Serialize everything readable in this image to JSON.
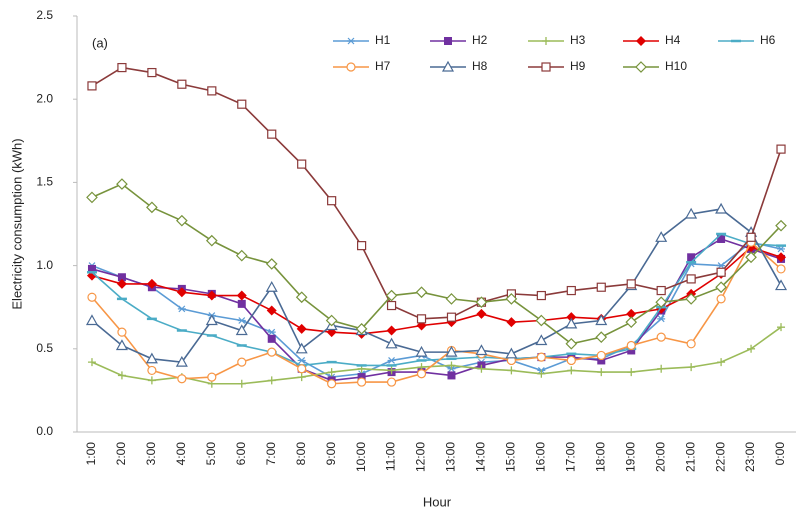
{
  "chart_data": {
    "type": "line",
    "annotation": "(a)",
    "xlabel": "Hour",
    "ylabel": "Electricity consumption (kWh)",
    "categories": [
      "1:00",
      "2:00",
      "3:00",
      "4:00",
      "5:00",
      "6:00",
      "7:00",
      "8:00",
      "9:00",
      "10:00",
      "11:00",
      "12:00",
      "13:00",
      "14:00",
      "15:00",
      "16:00",
      "17:00",
      "18:00",
      "19:00",
      "20:00",
      "21:00",
      "22:00",
      "23:00",
      "0:00"
    ],
    "ylim": [
      0,
      2.5
    ],
    "yticks": [
      {
        "value": 0,
        "label": "0.0"
      },
      0.5,
      {
        "value": 1,
        "label": "1.0"
      },
      1.5,
      {
        "value": 2,
        "label": "2.0"
      },
      2.5
    ],
    "grid": false,
    "series": [
      {
        "name": "H1",
        "color": "#5b9bd5",
        "marker": "asterisk",
        "values": [
          1.0,
          0.93,
          0.87,
          0.74,
          0.7,
          0.67,
          0.6,
          0.43,
          0.33,
          0.35,
          0.43,
          0.46,
          0.38,
          0.42,
          0.43,
          0.37,
          0.44,
          0.44,
          0.52,
          0.68,
          1.01,
          1.0,
          1.14,
          1.1
        ]
      },
      {
        "name": "H2",
        "color": "#7030a0",
        "marker": "square",
        "values": [
          0.98,
          0.93,
          0.87,
          0.86,
          0.83,
          0.77,
          0.56,
          0.38,
          0.31,
          0.33,
          0.36,
          0.36,
          0.34,
          0.4,
          0.44,
          0.45,
          0.45,
          0.43,
          0.49,
          0.73,
          1.05,
          1.16,
          1.1,
          1.04
        ]
      },
      {
        "name": "H3",
        "color": "#9bbb59",
        "marker": "plus",
        "values": [
          0.42,
          0.34,
          0.31,
          0.33,
          0.29,
          0.29,
          0.31,
          0.33,
          0.36,
          0.38,
          0.37,
          0.39,
          0.4,
          0.38,
          0.37,
          0.35,
          0.37,
          0.36,
          0.36,
          0.38,
          0.39,
          0.42,
          0.5,
          0.63
        ]
      },
      {
        "name": "H4",
        "color": "#e00000",
        "marker": "diamond",
        "values": [
          0.94,
          0.89,
          0.89,
          0.84,
          0.82,
          0.82,
          0.73,
          0.62,
          0.6,
          0.59,
          0.61,
          0.64,
          0.66,
          0.71,
          0.66,
          0.67,
          0.69,
          0.68,
          0.71,
          0.74,
          0.83,
          0.95,
          1.11,
          1.05
        ]
      },
      {
        "name": "H6",
        "color": "#4bacc6",
        "marker": "dash",
        "values": [
          0.96,
          0.8,
          0.68,
          0.61,
          0.58,
          0.52,
          0.48,
          0.4,
          0.42,
          0.4,
          0.4,
          0.43,
          0.44,
          0.45,
          0.44,
          0.45,
          0.47,
          0.46,
          0.5,
          0.75,
          1.02,
          1.19,
          1.13,
          1.12
        ]
      },
      {
        "name": "H7",
        "color": "#f79646",
        "marker": "circle",
        "values": [
          0.81,
          0.6,
          0.37,
          0.32,
          0.33,
          0.42,
          0.48,
          0.38,
          0.29,
          0.3,
          0.3,
          0.35,
          0.49,
          0.47,
          0.43,
          0.45,
          0.43,
          0.46,
          0.52,
          0.57,
          0.53,
          0.8,
          1.14,
          0.98
        ]
      },
      {
        "name": "H8",
        "color": "#4a6a94",
        "marker": "triangle",
        "values": [
          0.67,
          0.52,
          0.44,
          0.42,
          0.67,
          0.61,
          0.87,
          0.5,
          0.64,
          0.61,
          0.53,
          0.48,
          0.48,
          0.49,
          0.47,
          0.55,
          0.65,
          0.67,
          0.88,
          1.17,
          1.31,
          1.34,
          1.2,
          0.88
        ]
      },
      {
        "name": "H9",
        "color": "#8b3a3a",
        "marker": "square-open",
        "values": [
          2.08,
          2.19,
          2.16,
          2.09,
          2.05,
          1.97,
          1.79,
          1.61,
          1.39,
          1.12,
          0.76,
          0.68,
          0.69,
          0.78,
          0.83,
          0.82,
          0.85,
          0.87,
          0.89,
          0.85,
          0.92,
          0.96,
          1.17,
          1.7
        ]
      },
      {
        "name": "H10",
        "color": "#77933c",
        "marker": "diamond-open",
        "values": [
          1.41,
          1.49,
          1.35,
          1.27,
          1.15,
          1.06,
          1.01,
          0.81,
          0.67,
          0.62,
          0.82,
          0.84,
          0.8,
          0.78,
          0.8,
          0.67,
          0.53,
          0.57,
          0.66,
          0.78,
          0.8,
          0.87,
          1.05,
          1.24
        ]
      }
    ]
  }
}
